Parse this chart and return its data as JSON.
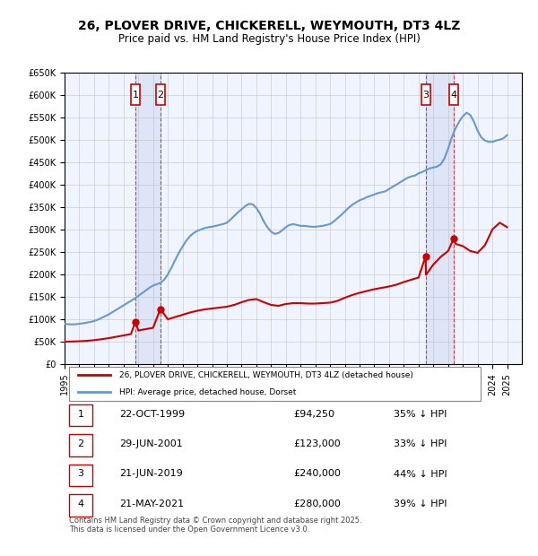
{
  "title": "26, PLOVER DRIVE, CHICKERELL, WEYMOUTH, DT3 4LZ",
  "subtitle": "Price paid vs. HM Land Registry's House Price Index (HPI)",
  "background_color": "#ffffff",
  "grid_color": "#cccccc",
  "plot_bg_color": "#f0f4ff",
  "ylim": [
    0,
    650000
  ],
  "yticks": [
    0,
    50000,
    100000,
    150000,
    200000,
    250000,
    300000,
    350000,
    400000,
    450000,
    500000,
    550000,
    600000,
    650000
  ],
  "xlim_start": 1995,
  "xlim_end": 2026,
  "xticks": [
    1995,
    1996,
    1997,
    1998,
    1999,
    2000,
    2001,
    2002,
    2003,
    2004,
    2005,
    2006,
    2007,
    2008,
    2009,
    2010,
    2011,
    2012,
    2013,
    2014,
    2015,
    2016,
    2017,
    2018,
    2019,
    2020,
    2021,
    2022,
    2023,
    2024,
    2025
  ],
  "red_line_color": "#cc0000",
  "blue_line_color": "#6699cc",
  "dashed_line_color": "#cc0000",
  "sale_color": "#cc0000",
  "transaction_line_color": "#cc0000",
  "transactions": [
    {
      "num": 1,
      "date": "22-OCT-1999",
      "year": 1999.8,
      "price": 94250,
      "label": "35% ↓ HPI"
    },
    {
      "num": 2,
      "date": "29-JUN-2001",
      "year": 2001.5,
      "price": 123000,
      "label": "33% ↓ HPI"
    },
    {
      "num": 3,
      "date": "21-JUN-2019",
      "year": 2019.47,
      "price": 240000,
      "label": "44% ↓ HPI"
    },
    {
      "num": 4,
      "date": "21-MAY-2021",
      "year": 2021.38,
      "price": 280000,
      "label": "39% ↓ HPI"
    }
  ],
  "hpi_data_x": [
    1995.0,
    1995.25,
    1995.5,
    1995.75,
    1996.0,
    1996.25,
    1996.5,
    1996.75,
    1997.0,
    1997.25,
    1997.5,
    1997.75,
    1998.0,
    1998.25,
    1998.5,
    1998.75,
    1999.0,
    1999.25,
    1999.5,
    1999.75,
    2000.0,
    2000.25,
    2000.5,
    2000.75,
    2001.0,
    2001.25,
    2001.5,
    2001.75,
    2002.0,
    2002.25,
    2002.5,
    2002.75,
    2003.0,
    2003.25,
    2003.5,
    2003.75,
    2004.0,
    2004.25,
    2004.5,
    2004.75,
    2005.0,
    2005.25,
    2005.5,
    2005.75,
    2006.0,
    2006.25,
    2006.5,
    2006.75,
    2007.0,
    2007.25,
    2007.5,
    2007.75,
    2008.0,
    2008.25,
    2008.5,
    2008.75,
    2009.0,
    2009.25,
    2009.5,
    2009.75,
    2010.0,
    2010.25,
    2010.5,
    2010.75,
    2011.0,
    2011.25,
    2011.5,
    2011.75,
    2012.0,
    2012.25,
    2012.5,
    2012.75,
    2013.0,
    2013.25,
    2013.5,
    2013.75,
    2014.0,
    2014.25,
    2014.5,
    2014.75,
    2015.0,
    2015.25,
    2015.5,
    2015.75,
    2016.0,
    2016.25,
    2016.5,
    2016.75,
    2017.0,
    2017.25,
    2017.5,
    2017.75,
    2018.0,
    2018.25,
    2018.5,
    2018.75,
    2019.0,
    2019.25,
    2019.5,
    2019.75,
    2020.0,
    2020.25,
    2020.5,
    2020.75,
    2021.0,
    2021.25,
    2021.5,
    2021.75,
    2022.0,
    2022.25,
    2022.5,
    2022.75,
    2023.0,
    2023.25,
    2023.5,
    2023.75,
    2024.0,
    2024.25,
    2024.5,
    2024.75,
    2025.0
  ],
  "hpi_data_y": [
    90000,
    89000,
    88500,
    89000,
    90000,
    91000,
    92500,
    94000,
    96000,
    99000,
    103000,
    107000,
    111000,
    116000,
    121000,
    126000,
    131000,
    136000,
    141000,
    146000,
    152000,
    158000,
    164000,
    170000,
    175000,
    178000,
    181000,
    188000,
    200000,
    215000,
    232000,
    248000,
    262000,
    275000,
    285000,
    292000,
    297000,
    300000,
    303000,
    305000,
    306000,
    308000,
    310000,
    312000,
    315000,
    322000,
    330000,
    338000,
    345000,
    352000,
    357000,
    356000,
    348000,
    335000,
    318000,
    305000,
    295000,
    290000,
    292000,
    298000,
    305000,
    310000,
    312000,
    310000,
    308000,
    308000,
    307000,
    306000,
    306000,
    307000,
    308000,
    310000,
    312000,
    318000,
    325000,
    332000,
    340000,
    348000,
    355000,
    360000,
    365000,
    368000,
    372000,
    375000,
    378000,
    381000,
    383000,
    385000,
    390000,
    395000,
    400000,
    405000,
    410000,
    415000,
    418000,
    420000,
    425000,
    428000,
    432000,
    436000,
    438000,
    440000,
    445000,
    458000,
    480000,
    505000,
    525000,
    540000,
    552000,
    560000,
    555000,
    540000,
    520000,
    505000,
    498000,
    495000,
    495000,
    498000,
    500000,
    503000,
    510000
  ],
  "red_data_x": [
    1995.0,
    1995.5,
    1996.0,
    1996.5,
    1997.0,
    1997.5,
    1998.0,
    1998.5,
    1999.0,
    1999.5,
    1999.8,
    2000.0,
    2000.5,
    2001.0,
    2001.5,
    2002.0,
    2002.5,
    2003.0,
    2003.5,
    2004.0,
    2004.5,
    2005.0,
    2005.5,
    2006.0,
    2006.5,
    2007.0,
    2007.5,
    2008.0,
    2008.5,
    2009.0,
    2009.5,
    2010.0,
    2010.5,
    2011.0,
    2011.5,
    2012.0,
    2012.5,
    2013.0,
    2013.5,
    2014.0,
    2014.5,
    2015.0,
    2015.5,
    2016.0,
    2016.5,
    2017.0,
    2017.5,
    2018.0,
    2018.5,
    2019.0,
    2019.47,
    2019.5,
    2020.0,
    2020.5,
    2021.0,
    2021.38,
    2021.5,
    2022.0,
    2022.5,
    2023.0,
    2023.5,
    2024.0,
    2024.5,
    2025.0
  ],
  "red_data_y": [
    50000,
    50500,
    51000,
    52000,
    53500,
    55500,
    58000,
    61000,
    64000,
    67000,
    94250,
    75000,
    78000,
    81000,
    123000,
    100000,
    105000,
    110000,
    115000,
    119000,
    122000,
    124000,
    126000,
    128000,
    132000,
    138000,
    143000,
    145000,
    138000,
    132000,
    130000,
    134000,
    136000,
    136000,
    135000,
    135000,
    136000,
    137000,
    141000,
    148000,
    154000,
    159000,
    163000,
    167000,
    170000,
    173000,
    177000,
    183000,
    188000,
    193000,
    240000,
    199000,
    222000,
    239000,
    252000,
    280000,
    268000,
    263000,
    252000,
    248000,
    265000,
    300000,
    315000,
    305000
  ],
  "legend_red_label": "26, PLOVER DRIVE, CHICKERELL, WEYMOUTH, DT3 4LZ (detached house)",
  "legend_blue_label": "HPI: Average price, detached house, Dorset",
  "footer_text": "Contains HM Land Registry data © Crown copyright and database right 2025.\nThis data is licensed under the Open Government Licence v3.0.",
  "table_rows": [
    {
      "num": 1,
      "date": "22-OCT-1999",
      "price": "£94,250",
      "hpi": "35% ↓ HPI"
    },
    {
      "num": 2,
      "date": "29-JUN-2001",
      "price": "£123,000",
      "hpi": "33% ↓ HPI"
    },
    {
      "num": 3,
      "date": "21-JUN-2019",
      "price": "£240,000",
      "hpi": "44% ↓ HPI"
    },
    {
      "num": 4,
      "date": "21-MAY-2021",
      "price": "£280,000",
      "hpi": "39% ↓ HPI"
    }
  ]
}
